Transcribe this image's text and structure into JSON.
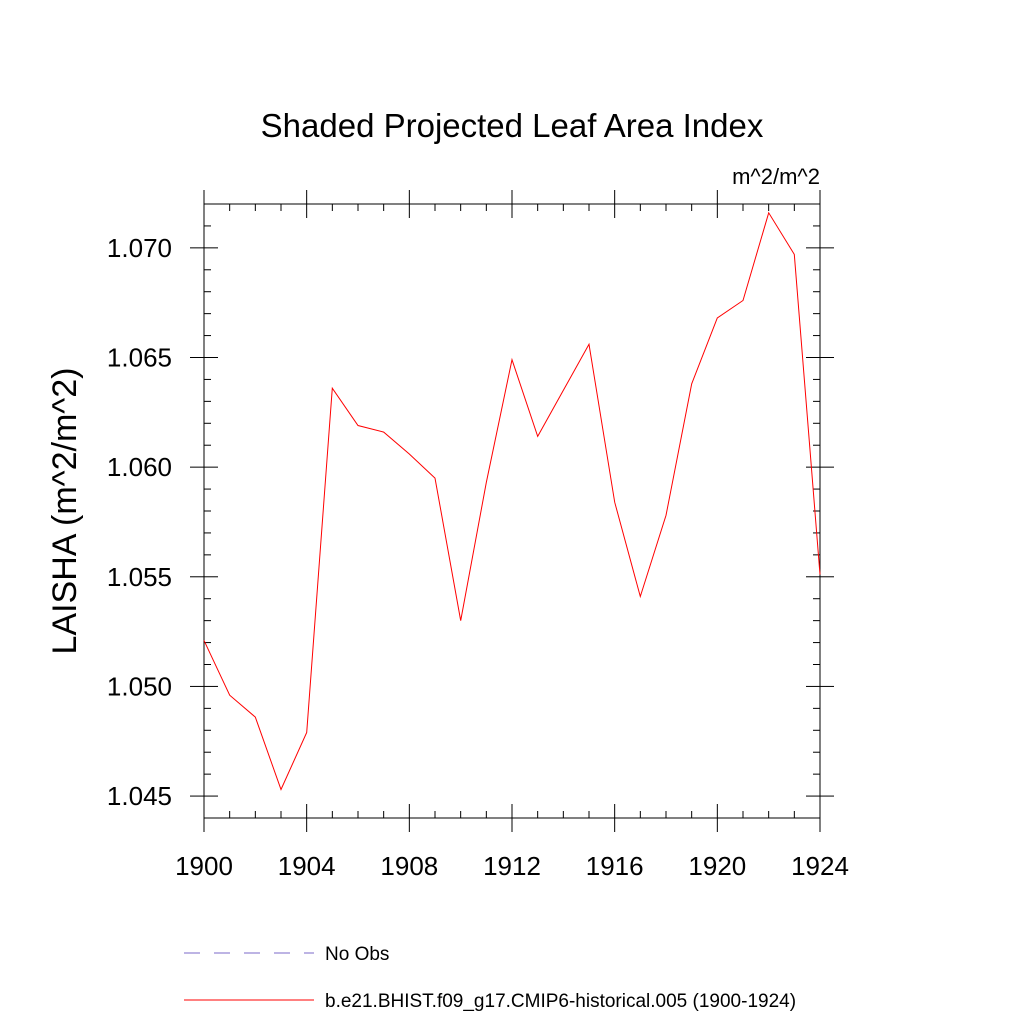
{
  "chart_data": {
    "type": "line",
    "title": "Shaded Projected Leaf Area Index",
    "units": "m^2/m^2",
    "ylabel": "LAISHA  (m^2/m^2)",
    "xlabel": "",
    "xlim": [
      1900,
      1924
    ],
    "ylim": [
      1.044,
      1.072
    ],
    "x_ticks": [
      "1900",
      "1904",
      "1908",
      "1912",
      "1916",
      "1920",
      "1924"
    ],
    "y_ticks": [
      "1.045",
      "1.050",
      "1.055",
      "1.060",
      "1.065",
      "1.070"
    ],
    "grid": false,
    "legend_position": "bottom",
    "series": [
      {
        "name": "b.e21.BHIST.f09_g17.CMIP6-historical.005 (1900-1924)",
        "color": "#ff0000",
        "style": "solid",
        "x": [
          1900,
          1901,
          1902,
          1903,
          1904,
          1905,
          1906,
          1907,
          1908,
          1909,
          1910,
          1911,
          1912,
          1913,
          1914,
          1915,
          1916,
          1917,
          1918,
          1919,
          1920,
          1921,
          1922,
          1923,
          1924
        ],
        "values": [
          1.0521,
          1.0496,
          1.0486,
          1.0453,
          1.0479,
          1.0636,
          1.0619,
          1.0616,
          1.0606,
          1.0595,
          1.053,
          1.0593,
          1.0649,
          1.0614,
          1.0635,
          1.0656,
          1.0584,
          1.0541,
          1.0578,
          1.0638,
          1.0668,
          1.0676,
          1.0716,
          1.0697,
          1.0551
        ]
      }
    ],
    "legend": [
      {
        "label": "No Obs",
        "color": "#7b68c8",
        "style": "dashed"
      },
      {
        "label": "b.e21.BHIST.f09_g17.CMIP6-historical.005 (1900-1924)",
        "color": "#ff0000",
        "style": "solid"
      }
    ]
  }
}
